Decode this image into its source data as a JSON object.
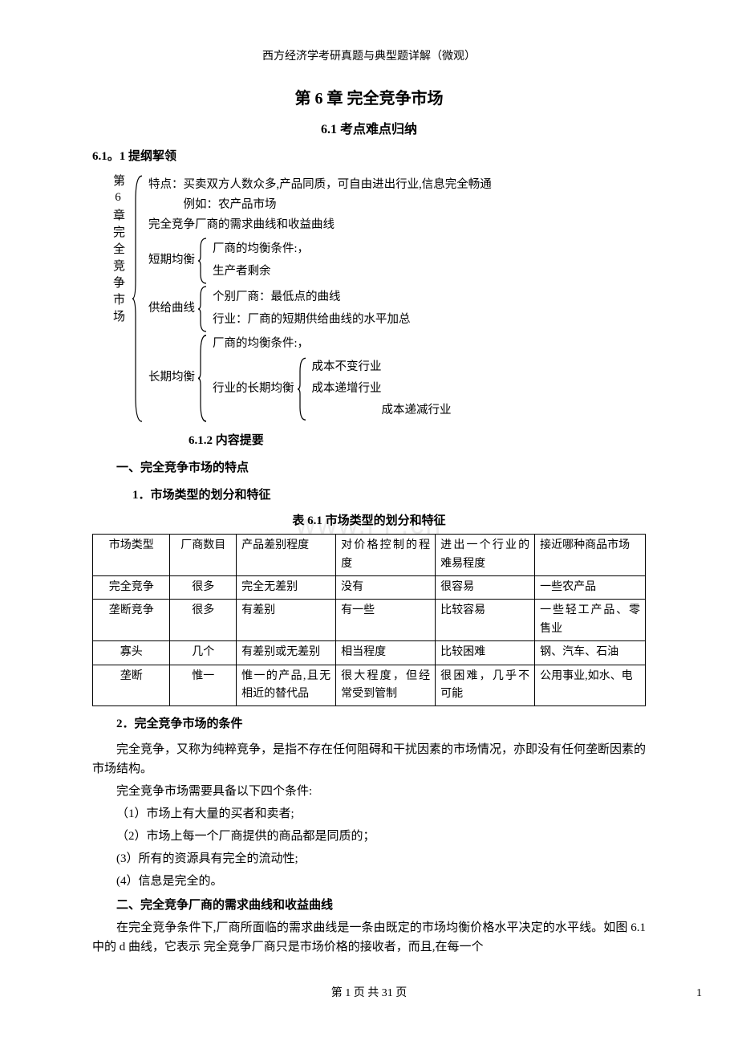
{
  "header": "西方经济学考研真题与典型题详解（微观）",
  "chapter_title": "第 6 章  完全竞争市场",
  "section_61": "6.1 考点难点归纳",
  "sub_611": "6.1。1 提纲挈领",
  "outline": {
    "root_label": "第6章完全竞争市场",
    "line1": "特点：买卖双方人数众多,产品同质，可自由进出行业,信息完全畅通",
    "line2": "例如：农产品市场",
    "line3": "完全竞争厂商的需求曲线和收益曲线",
    "short_eq_label": "短期均衡",
    "short_eq_1": "厂商的均衡条件:，",
    "short_eq_2": "生产者剩余",
    "supply_label": "供给曲线",
    "supply_1": "个别厂商：最低点的曲线",
    "supply_2": "行业：厂商的短期供给曲线的水平加总",
    "long_eq_label": "长期均衡",
    "long_eq_1": "厂商的均衡条件:，",
    "long_eq_2_label": "行业的长期均衡",
    "long_eq_2_1": "成本不变行业",
    "long_eq_2_2": "成本递增行业",
    "long_eq_2_3": "成本递减行业"
  },
  "sub_612": "6.1.2  内容提要",
  "h1": "一、完全竞争市场的特点",
  "h1_1": "1．市场类型的划分和特征",
  "table_caption": "表 6.1    市场类型的划分和特征",
  "watermark": "www.i i   .cn",
  "table": {
    "columns": [
      "市场类型",
      "厂商数目",
      "产品差别程度",
      "对价格控制的程度",
      "进出一个行业的难易程度",
      "接近哪种商品市场"
    ],
    "rows": [
      [
        "完全竞争",
        "很多",
        "完全无差别",
        "没有",
        "很容易",
        "一些农产品"
      ],
      [
        "垄断竞争",
        "很多",
        "有差别",
        "有一些",
        "比较容易",
        "一些轻工产品、零售业"
      ],
      [
        "寡头",
        "几个",
        "有差别或无差别",
        "相当程度",
        "比较困难",
        "钢、汽车、石油"
      ],
      [
        "垄断",
        "惟一",
        "惟一的产品,且无相近的替代品",
        "很大程度，但经常受到管制",
        "很困难，几乎不可能",
        "公用事业,如水、电"
      ]
    ]
  },
  "h1_2": "2．完全竞争市场的条件",
  "p1": "完全竞争，又称为纯粹竞争，是指不存在任何阻碍和干扰因素的市场情况，亦即没有任何垄断因素的市场结构。",
  "p2": "完全竞争市场需要具备以下四个条件:",
  "c1": "（1）市场上有大量的买者和卖者;",
  "c2": "（2）市场上每一个厂商提供的商品都是同质的；",
  "c3": "(3）所有的资源具有完全的流动性;",
  "c4": "(4）信息是完全的。",
  "h2": "二、完全竞争厂商的需求曲线和收益曲线",
  "p3": "在完全竞争条件下,厂商所面临的需求曲线是一条由既定的市场均衡价格水平决定的水平线。如图 6.1 中的 d 曲线，它表示  完全竞争厂商只是市场价格的接收者，而且,在每一个",
  "footer": "第  1  页  共 31  页",
  "footer_num": "1"
}
